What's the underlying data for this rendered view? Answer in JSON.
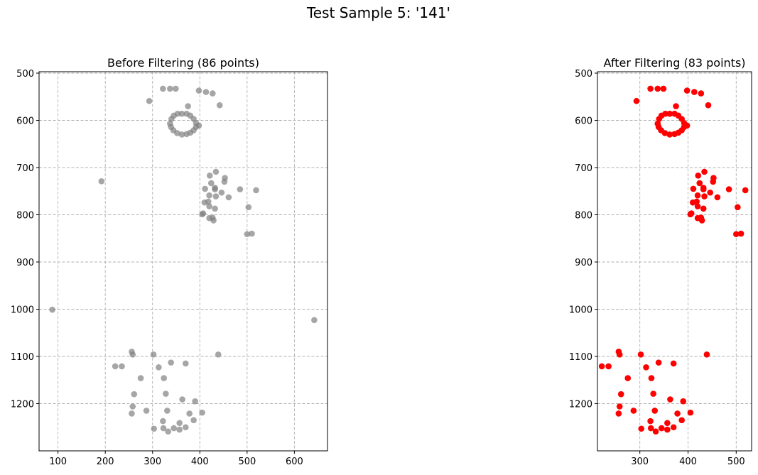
{
  "figure": {
    "suptitle": "Test Sample 5: '141'"
  },
  "chart_data": [
    {
      "type": "scatter",
      "title": "Before Filtering (86 points)",
      "xlabel": "",
      "ylabel": "",
      "xlim": [
        60,
        670
      ],
      "ylim": [
        1300,
        497
      ],
      "y_inverted": true,
      "grid": true,
      "x_ticks": [
        100,
        200,
        300,
        400,
        500,
        600
      ],
      "y_ticks": [
        500,
        600,
        700,
        800,
        900,
        1000,
        1100,
        1200
      ],
      "marker_color": "#808080",
      "marker_alpha": 0.7,
      "points": [
        [
          322,
          533
        ],
        [
          337,
          533
        ],
        [
          349,
          533
        ],
        [
          293,
          559
        ],
        [
          398,
          537
        ],
        [
          413,
          540
        ],
        [
          427,
          543
        ],
        [
          442,
          568
        ],
        [
          375,
          570
        ],
        [
          337,
          607
        ],
        [
          340,
          597
        ],
        [
          345,
          590
        ],
        [
          353,
          586
        ],
        [
          362,
          586
        ],
        [
          372,
          586
        ],
        [
          380,
          590
        ],
        [
          387,
          597
        ],
        [
          392,
          606
        ],
        [
          392,
          614
        ],
        [
          387,
          621
        ],
        [
          380,
          626
        ],
        [
          372,
          629
        ],
        [
          362,
          630
        ],
        [
          352,
          627
        ],
        [
          344,
          621
        ],
        [
          339,
          614
        ],
        [
          398,
          611
        ],
        [
          434,
          709
        ],
        [
          421,
          717
        ],
        [
          453,
          722
        ],
        [
          424,
          733
        ],
        [
          452,
          730
        ],
        [
          432,
          743
        ],
        [
          411,
          745
        ],
        [
          432,
          746
        ],
        [
          446,
          753
        ],
        [
          485,
          746
        ],
        [
          519,
          748
        ],
        [
          420,
          759
        ],
        [
          434,
          761
        ],
        [
          461,
          763
        ],
        [
          418,
          772
        ],
        [
          410,
          774
        ],
        [
          420,
          782
        ],
        [
          432,
          787
        ],
        [
          503,
          784
        ],
        [
          407,
          797
        ],
        [
          405,
          799
        ],
        [
          420,
          807
        ],
        [
          427,
          806
        ],
        [
          429,
          812
        ],
        [
          500,
          841
        ],
        [
          510,
          840
        ],
        [
          192,
          729
        ],
        [
          88,
          1001
        ],
        [
          642,
          1023
        ],
        [
          256,
          1090
        ],
        [
          258,
          1096
        ],
        [
          302,
          1096
        ],
        [
          439,
          1096
        ],
        [
          221,
          1121
        ],
        [
          235,
          1121
        ],
        [
          313,
          1123
        ],
        [
          339,
          1113
        ],
        [
          370,
          1115
        ],
        [
          275,
          1146
        ],
        [
          324,
          1146
        ],
        [
          261,
          1180
        ],
        [
          328,
          1179
        ],
        [
          363,
          1191
        ],
        [
          390,
          1195
        ],
        [
          258,
          1206
        ],
        [
          287,
          1215
        ],
        [
          331,
          1215
        ],
        [
          256,
          1221
        ],
        [
          378,
          1221
        ],
        [
          405,
          1219
        ],
        [
          322,
          1237
        ],
        [
          357,
          1241
        ],
        [
          387,
          1235
        ],
        [
          303,
          1253
        ],
        [
          333,
          1259
        ],
        [
          357,
          1255
        ],
        [
          323,
          1252
        ],
        [
          345,
          1252
        ],
        [
          370,
          1250
        ]
      ]
    },
    {
      "type": "scatter",
      "title": "After Filtering (83 points)",
      "xlabel": "",
      "ylabel": "",
      "xlim": [
        212,
        532
      ],
      "ylim": [
        1300,
        497
      ],
      "y_inverted": true,
      "grid": true,
      "x_ticks": [
        300,
        400,
        500
      ],
      "y_ticks": [
        500,
        600,
        700,
        800,
        900,
        1000,
        1100,
        1200
      ],
      "marker_color": "#ff0000",
      "marker_alpha": 1,
      "points": [
        [
          322,
          533
        ],
        [
          337,
          533
        ],
        [
          349,
          533
        ],
        [
          293,
          559
        ],
        [
          398,
          537
        ],
        [
          413,
          540
        ],
        [
          427,
          543
        ],
        [
          442,
          568
        ],
        [
          375,
          570
        ],
        [
          337,
          607
        ],
        [
          340,
          597
        ],
        [
          345,
          590
        ],
        [
          353,
          586
        ],
        [
          362,
          586
        ],
        [
          372,
          586
        ],
        [
          380,
          590
        ],
        [
          387,
          597
        ],
        [
          392,
          606
        ],
        [
          392,
          614
        ],
        [
          387,
          621
        ],
        [
          380,
          626
        ],
        [
          372,
          629
        ],
        [
          362,
          630
        ],
        [
          352,
          627
        ],
        [
          344,
          621
        ],
        [
          339,
          614
        ],
        [
          398,
          611
        ],
        [
          434,
          709
        ],
        [
          421,
          717
        ],
        [
          453,
          722
        ],
        [
          424,
          733
        ],
        [
          452,
          730
        ],
        [
          432,
          743
        ],
        [
          411,
          745
        ],
        [
          432,
          746
        ],
        [
          446,
          753
        ],
        [
          485,
          746
        ],
        [
          519,
          748
        ],
        [
          420,
          759
        ],
        [
          434,
          761
        ],
        [
          461,
          763
        ],
        [
          418,
          772
        ],
        [
          410,
          774
        ],
        [
          420,
          782
        ],
        [
          432,
          787
        ],
        [
          503,
          784
        ],
        [
          407,
          797
        ],
        [
          405,
          799
        ],
        [
          420,
          807
        ],
        [
          427,
          806
        ],
        [
          429,
          812
        ],
        [
          500,
          841
        ],
        [
          510,
          840
        ],
        [
          256,
          1090
        ],
        [
          258,
          1096
        ],
        [
          302,
          1096
        ],
        [
          439,
          1096
        ],
        [
          221,
          1121
        ],
        [
          235,
          1121
        ],
        [
          313,
          1123
        ],
        [
          339,
          1113
        ],
        [
          370,
          1115
        ],
        [
          275,
          1146
        ],
        [
          324,
          1146
        ],
        [
          261,
          1180
        ],
        [
          328,
          1179
        ],
        [
          363,
          1191
        ],
        [
          390,
          1195
        ],
        [
          258,
          1206
        ],
        [
          287,
          1215
        ],
        [
          331,
          1215
        ],
        [
          256,
          1221
        ],
        [
          378,
          1221
        ],
        [
          405,
          1219
        ],
        [
          322,
          1237
        ],
        [
          357,
          1241
        ],
        [
          387,
          1235
        ],
        [
          303,
          1253
        ],
        [
          333,
          1259
        ],
        [
          357,
          1255
        ],
        [
          323,
          1252
        ],
        [
          345,
          1252
        ],
        [
          370,
          1250
        ]
      ]
    }
  ]
}
